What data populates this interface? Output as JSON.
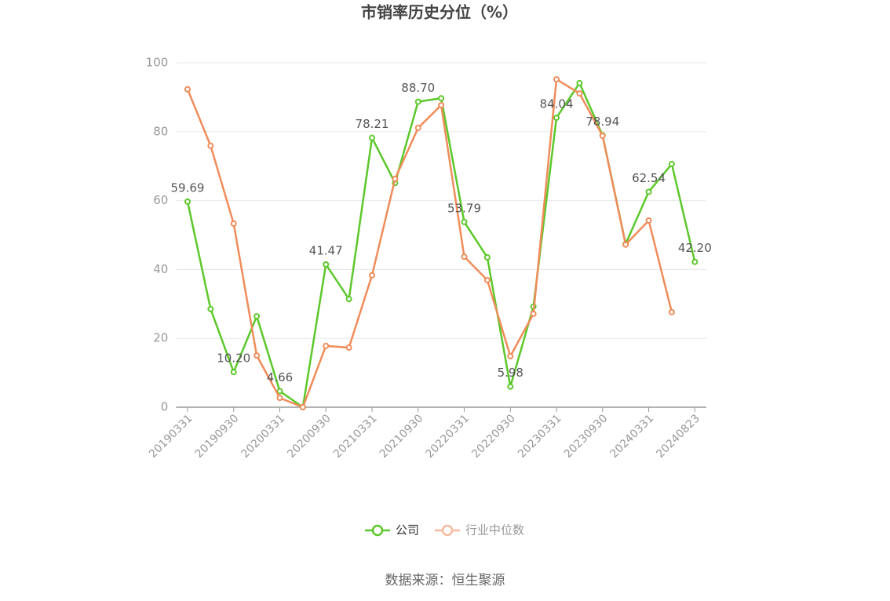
{
  "chart_data": {
    "type": "line",
    "title": "市销率历史分位（%）",
    "source": "数据来源：恒生聚源",
    "categories": [
      "20190331",
      null,
      "20190930",
      null,
      "20200331",
      null,
      "20200930",
      null,
      "20210331",
      null,
      "20210930",
      null,
      "20220331",
      null,
      "20220930",
      null,
      "20230331",
      null,
      "20230930",
      null,
      "20240331",
      null,
      "20240823"
    ],
    "series": [
      {
        "name": "公司",
        "color": "#5cc82b",
        "values": [
          59.69,
          28.5,
          10.2,
          26.4,
          4.66,
          0,
          41.47,
          31.4,
          78.21,
          65.1,
          88.7,
          89.7,
          53.79,
          43.5,
          5.98,
          29.2,
          84.04,
          94.1,
          78.94,
          47.4,
          62.54,
          70.6,
          42.2
        ],
        "value_labels": [
          "59.69",
          null,
          "10.20",
          null,
          "4.66",
          null,
          "41.47",
          null,
          "78.21",
          null,
          "88.70",
          null,
          "53.79",
          null,
          "5.98",
          null,
          "84.04",
          null,
          "78.94",
          null,
          "62.54",
          null,
          "42.20"
        ]
      },
      {
        "name": "行业中位数",
        "color": "#f08c5a",
        "values": [
          92.3,
          75.9,
          53.3,
          15.0,
          2.7,
          0,
          17.8,
          17.3,
          38.3,
          66.3,
          81.1,
          87.7,
          43.7,
          36.9,
          14.8,
          27.1,
          95.2,
          91.1,
          78.8,
          47.2,
          54.2,
          27.6,
          null
        ]
      }
    ],
    "ylim": [
      0,
      100
    ],
    "yticks": [
      0,
      20,
      40,
      60,
      80,
      100
    ],
    "grid": true
  }
}
